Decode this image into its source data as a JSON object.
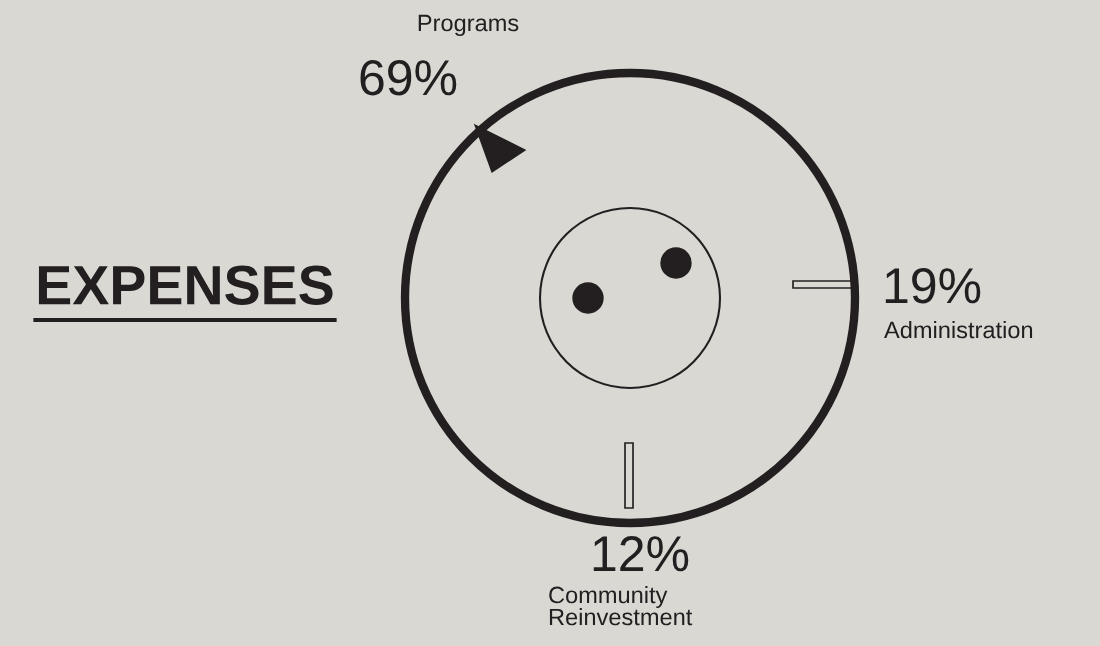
{
  "chart_data": {
    "type": "other",
    "title": "EXPENSES",
    "categories": [
      "Programs",
      "Administration",
      "Community Reinvestment"
    ],
    "values": [
      69,
      19,
      12
    ],
    "value_labels": [
      "69%",
      "19%",
      "12%"
    ]
  }
}
